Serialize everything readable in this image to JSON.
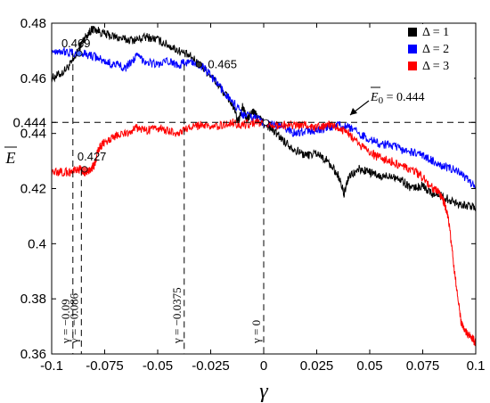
{
  "chart_data": {
    "type": "line",
    "xlabel": "γ",
    "ylabel": "E",
    "xlim": [
      -0.1,
      0.1
    ],
    "ylim": [
      0.36,
      0.48
    ],
    "x_ticks": [
      -0.1,
      -0.075,
      -0.05,
      -0.025,
      0,
      0.025,
      0.05,
      0.075,
      0.1
    ],
    "x_tick_labels": [
      "-0.1",
      "-0.075",
      "-0.05",
      "-0.025",
      "0",
      "0.025",
      "0.05",
      "0.075",
      "0.1"
    ],
    "y_ticks": [
      0.36,
      0.38,
      0.4,
      0.42,
      0.44,
      0.444,
      0.46,
      0.48
    ],
    "y_tick_labels": [
      "0.36",
      "0.38",
      "0.4",
      "0.42",
      "0.44",
      "0.444",
      "0.46",
      "0.48"
    ],
    "grid": false,
    "legend_position": "top-right",
    "series": [
      {
        "name": "Δ = 1",
        "color": "#000000",
        "x": [
          -0.1,
          -0.095,
          -0.09,
          -0.087,
          -0.085,
          -0.082,
          -0.08,
          -0.075,
          -0.07,
          -0.065,
          -0.06,
          -0.055,
          -0.05,
          -0.045,
          -0.04,
          -0.035,
          -0.03,
          -0.025,
          -0.02,
          -0.015,
          -0.012,
          -0.01,
          -0.008,
          -0.005,
          -0.003,
          0,
          0.003,
          0.006,
          0.01,
          0.015,
          0.02,
          0.025,
          0.03,
          0.035,
          0.038,
          0.04,
          0.045,
          0.05,
          0.055,
          0.06,
          0.065,
          0.07,
          0.075,
          0.08,
          0.085,
          0.09,
          0.095,
          0.1
        ],
        "y": [
          0.46,
          0.462,
          0.466,
          0.471,
          0.474,
          0.477,
          0.478,
          0.476,
          0.475,
          0.474,
          0.474,
          0.475,
          0.474,
          0.472,
          0.47,
          0.468,
          0.465,
          0.461,
          0.456,
          0.451,
          0.444,
          0.45,
          0.445,
          0.448,
          0.446,
          0.444,
          0.442,
          0.44,
          0.437,
          0.434,
          0.432,
          0.433,
          0.43,
          0.425,
          0.418,
          0.424,
          0.427,
          0.426,
          0.424,
          0.425,
          0.423,
          0.42,
          0.421,
          0.418,
          0.417,
          0.415,
          0.414,
          0.413
        ]
      },
      {
        "name": "Δ = 2",
        "color": "#0000ff",
        "x": [
          -0.1,
          -0.095,
          -0.09,
          -0.085,
          -0.08,
          -0.075,
          -0.07,
          -0.065,
          -0.06,
          -0.055,
          -0.05,
          -0.045,
          -0.04,
          -0.035,
          -0.03,
          -0.025,
          -0.02,
          -0.015,
          -0.01,
          -0.005,
          0,
          0.005,
          0.01,
          0.015,
          0.02,
          0.025,
          0.03,
          0.035,
          0.04,
          0.045,
          0.05,
          0.055,
          0.06,
          0.065,
          0.07,
          0.075,
          0.08,
          0.085,
          0.09,
          0.095,
          0.1
        ],
        "y": [
          0.47,
          0.47,
          0.469,
          0.469,
          0.468,
          0.466,
          0.465,
          0.464,
          0.468,
          0.466,
          0.465,
          0.466,
          0.465,
          0.466,
          0.465,
          0.461,
          0.456,
          0.452,
          0.447,
          0.446,
          0.444,
          0.443,
          0.442,
          0.44,
          0.441,
          0.441,
          0.442,
          0.443,
          0.442,
          0.44,
          0.438,
          0.436,
          0.436,
          0.434,
          0.433,
          0.432,
          0.43,
          0.428,
          0.427,
          0.424,
          0.42
        ]
      },
      {
        "name": "Δ = 3",
        "color": "#ff0000",
        "x": [
          -0.1,
          -0.095,
          -0.09,
          -0.087,
          -0.085,
          -0.082,
          -0.08,
          -0.078,
          -0.075,
          -0.07,
          -0.065,
          -0.06,
          -0.055,
          -0.05,
          -0.045,
          -0.04,
          -0.035,
          -0.03,
          -0.025,
          -0.02,
          -0.015,
          -0.01,
          -0.005,
          0,
          0.005,
          0.01,
          0.015,
          0.02,
          0.025,
          0.03,
          0.035,
          0.04,
          0.045,
          0.05,
          0.055,
          0.06,
          0.065,
          0.07,
          0.075,
          0.08,
          0.083,
          0.085,
          0.087,
          0.09,
          0.093,
          0.095,
          0.098,
          0.1
        ],
        "y": [
          0.426,
          0.426,
          0.426,
          0.427,
          0.426,
          0.427,
          0.428,
          0.434,
          0.437,
          0.439,
          0.44,
          0.442,
          0.441,
          0.442,
          0.441,
          0.44,
          0.442,
          0.443,
          0.442,
          0.443,
          0.444,
          0.443,
          0.444,
          0.444,
          0.443,
          0.443,
          0.443,
          0.443,
          0.442,
          0.443,
          0.442,
          0.44,
          0.436,
          0.433,
          0.431,
          0.43,
          0.428,
          0.427,
          0.424,
          0.42,
          0.418,
          0.415,
          0.41,
          0.39,
          0.372,
          0.368,
          0.366,
          0.364
        ]
      }
    ],
    "markers": [
      {
        "x": -0.087,
        "y": 0.469,
        "label": "0.469",
        "color": "#4466ff"
      },
      {
        "x": -0.0305,
        "y": 0.465,
        "label": "0.465",
        "color": "#333333"
      },
      {
        "x": -0.0845,
        "y": 0.427,
        "label": "0.427",
        "color": "#ff4444"
      },
      {
        "x": 0.001,
        "y": 0.444,
        "label": "",
        "color": "#ffffff"
      }
    ],
    "reference_line": {
      "y": 0.444,
      "label_prefix": "E",
      "label_sub": "0",
      "label_suffix": "= 0.444"
    },
    "vertical_lines": [
      {
        "x": -0.09,
        "label": "γ = −0.09"
      },
      {
        "x": -0.086,
        "label": "γ = −0.086"
      },
      {
        "x": -0.0375,
        "label": "γ = −0.0375"
      },
      {
        "x": 0,
        "label": "γ = 0"
      }
    ]
  }
}
